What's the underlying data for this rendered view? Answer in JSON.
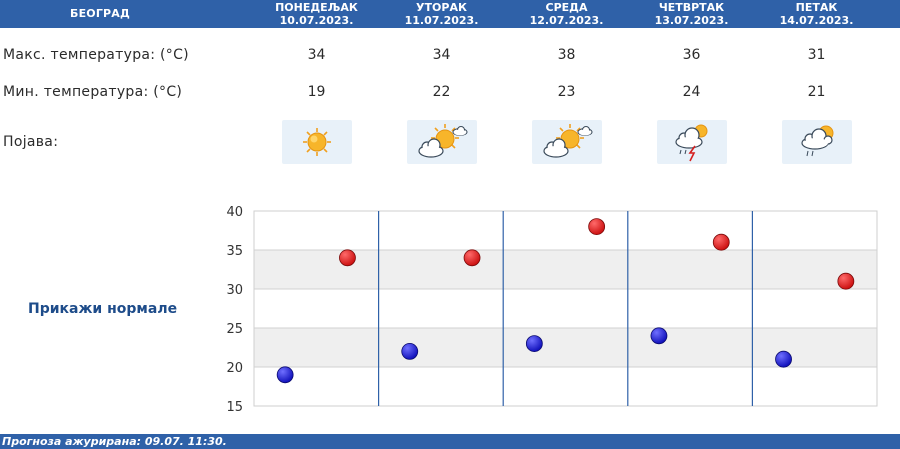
{
  "header": {
    "city": "БЕОГРАД",
    "days": [
      {
        "name": "ПОНЕДЕЉАК",
        "date": "10.07.2023."
      },
      {
        "name": "УТОРАК",
        "date": "11.07.2023."
      },
      {
        "name": "СРЕДА",
        "date": "12.07.2023."
      },
      {
        "name": "ЧЕТВРТАК",
        "date": "13.07.2023."
      },
      {
        "name": "ПЕТАК",
        "date": "14.07.2023."
      }
    ]
  },
  "rows": {
    "max_label": "Макс. температура: (°C)",
    "min_label": "Мин. температура: (°C)",
    "phenomenon_label": "Појава:",
    "max_values": [
      "34",
      "34",
      "38",
      "36",
      "31"
    ],
    "min_values": [
      "19",
      "22",
      "23",
      "24",
      "21"
    ],
    "icons": [
      "sunny-icon",
      "partly-cloudy-icon",
      "partly-cloudy-icon",
      "thunderstorm-icon",
      "cloudy-rain-icon"
    ]
  },
  "normals_link": "Прикажи нормале",
  "footer": {
    "updated_text": "Прогноза ажурирана:  09.07.  11:30."
  },
  "colors": {
    "header_bg": "#2f61a8",
    "max_dot": "#cc1111",
    "min_dot": "#1111bb",
    "separator": "#2f61a8"
  },
  "chart_data": {
    "type": "scatter",
    "categories": [
      "10.07.2023.",
      "11.07.2023.",
      "12.07.2023.",
      "13.07.2023.",
      "14.07.2023."
    ],
    "series": [
      {
        "values": [
          19,
          22,
          23,
          24,
          21
        ],
        "color": "#1111bb"
      },
      {
        "values": [
          34,
          34,
          38,
          36,
          31
        ],
        "color": "#cc1111"
      }
    ],
    "ylim": [
      15,
      40
    ],
    "yticks": [
      "15",
      "20",
      "25",
      "30",
      "35",
      "40"
    ],
    "grid": true
  }
}
